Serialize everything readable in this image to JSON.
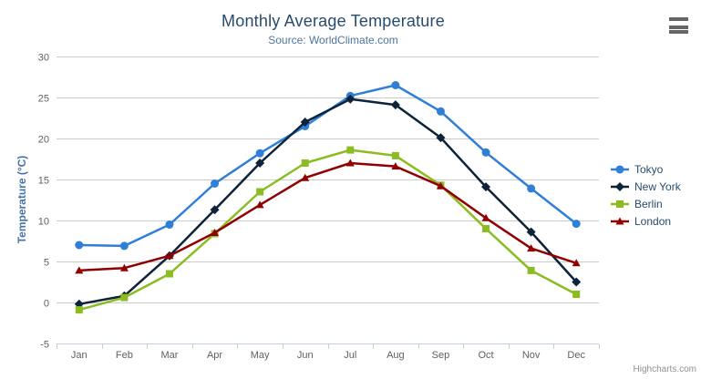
{
  "chart_data": {
    "type": "line",
    "title": "Monthly Average Temperature",
    "subtitle": "Source: WorldClimate.com",
    "categories": [
      "Jan",
      "Feb",
      "Mar",
      "Apr",
      "May",
      "Jun",
      "Jul",
      "Aug",
      "Sep",
      "Oct",
      "Nov",
      "Dec"
    ],
    "series": [
      {
        "name": "Tokyo",
        "color": "#2f7ed8",
        "marker": "circle",
        "values": [
          7.0,
          6.9,
          9.5,
          14.5,
          18.2,
          21.5,
          25.2,
          26.5,
          23.3,
          18.3,
          13.9,
          9.6
        ]
      },
      {
        "name": "New York",
        "color": "#0d233a",
        "marker": "diamond",
        "values": [
          -0.2,
          0.8,
          5.7,
          11.3,
          17.0,
          22.0,
          24.8,
          24.1,
          20.1,
          14.1,
          8.6,
          2.5
        ]
      },
      {
        "name": "Berlin",
        "color": "#8bbc21",
        "marker": "square",
        "values": [
          -0.9,
          0.6,
          3.5,
          8.4,
          13.5,
          17.0,
          18.6,
          17.9,
          14.3,
          9.0,
          3.9,
          1.0
        ]
      },
      {
        "name": "London",
        "color": "#910000",
        "marker": "triangle",
        "values": [
          3.9,
          4.2,
          5.7,
          8.5,
          11.9,
          15.2,
          17.0,
          16.6,
          14.2,
          10.3,
          6.6,
          4.8
        ]
      }
    ],
    "xlabel": "",
    "ylabel": "Temperature (°C)",
    "ylim": [
      -5,
      30
    ],
    "yticks": [
      -5,
      0,
      5,
      10,
      15,
      20,
      25,
      30
    ],
    "grid": "horizontal",
    "legend_position": "right"
  },
  "credits": {
    "label": "Highcharts.com"
  },
  "colors": {
    "title": "#274b6d",
    "subtitle": "#4d759e",
    "axis_label": "#606060",
    "axis_title": "#4572a7",
    "axis_line": "#c0d0e0",
    "gridline": "#cccccc",
    "legend_text": "#274b6d",
    "credits": "#909090",
    "menu_icon": "#666666",
    "background": "#ffffff"
  }
}
